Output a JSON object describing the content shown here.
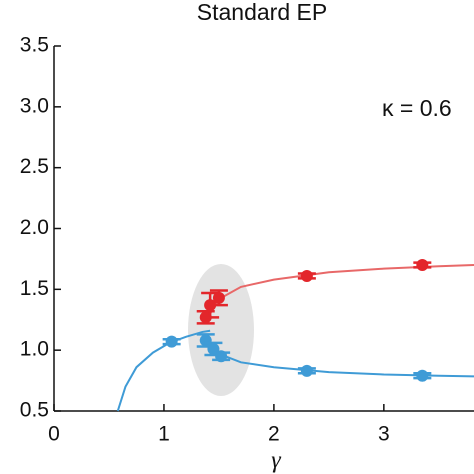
{
  "chart_data": {
    "type": "scatter",
    "title": "Standard EP",
    "annotation": "κ = 0.6",
    "xlabel": "γ",
    "xlim": [
      0,
      3.82
    ],
    "ylim": [
      0.5,
      3.5
    ],
    "xticks": [
      0,
      1,
      2,
      3
    ],
    "yticks": [
      {
        "value": 0.5,
        "label": "0.5"
      },
      {
        "value": 1,
        "label": "1.0"
      },
      {
        "value": 1.5,
        "label": "1.5"
      },
      {
        "value": 2,
        "label": "2.0"
      },
      {
        "value": 2.5,
        "label": "2.5"
      },
      {
        "value": 3,
        "label": "3.0"
      },
      {
        "value": 3.5,
        "label": "3.5"
      }
    ],
    "series": [
      {
        "color": "#e3262b",
        "x": [
          1.38,
          1.42,
          1.5,
          2.3,
          3.35
        ],
        "values": [
          1.27,
          1.37,
          1.43,
          1.61,
          1.7
        ],
        "yerr": [
          0.05,
          0.1,
          0.06,
          0.02,
          0.02
        ]
      },
      {
        "color": "#3f9bd6",
        "x": [
          1.07,
          1.38,
          1.45,
          1.52,
          2.3,
          3.35
        ],
        "values": [
          1.07,
          1.08,
          1.01,
          0.95,
          0.83,
          0.79
        ],
        "yerr": [
          0.02,
          0.05,
          0.05,
          0.03,
          0.02,
          0.02
        ]
      }
    ],
    "lines": [
      {
        "color": "#3f9bd6",
        "x": [
          0.58,
          0.65,
          0.75,
          0.9,
          1.05,
          1.2,
          1.35,
          1.42
        ],
        "values": [
          0.5,
          0.7,
          0.86,
          0.98,
          1.06,
          1.11,
          1.15,
          1.16
        ]
      },
      {
        "color": "#3f9bd6",
        "x": [
          1.42,
          1.5,
          1.7,
          2.0,
          2.5,
          3.0,
          3.5,
          3.82
        ],
        "values": [
          1.06,
          0.97,
          0.9,
          0.86,
          0.82,
          0.8,
          0.79,
          0.785
        ]
      },
      {
        "color": "#e86868",
        "x": [
          1.42,
          1.5,
          1.7,
          2.0,
          2.5,
          3.0,
          3.5,
          3.82
        ],
        "values": [
          1.3,
          1.42,
          1.52,
          1.58,
          1.64,
          1.67,
          1.69,
          1.7
        ]
      }
    ]
  }
}
